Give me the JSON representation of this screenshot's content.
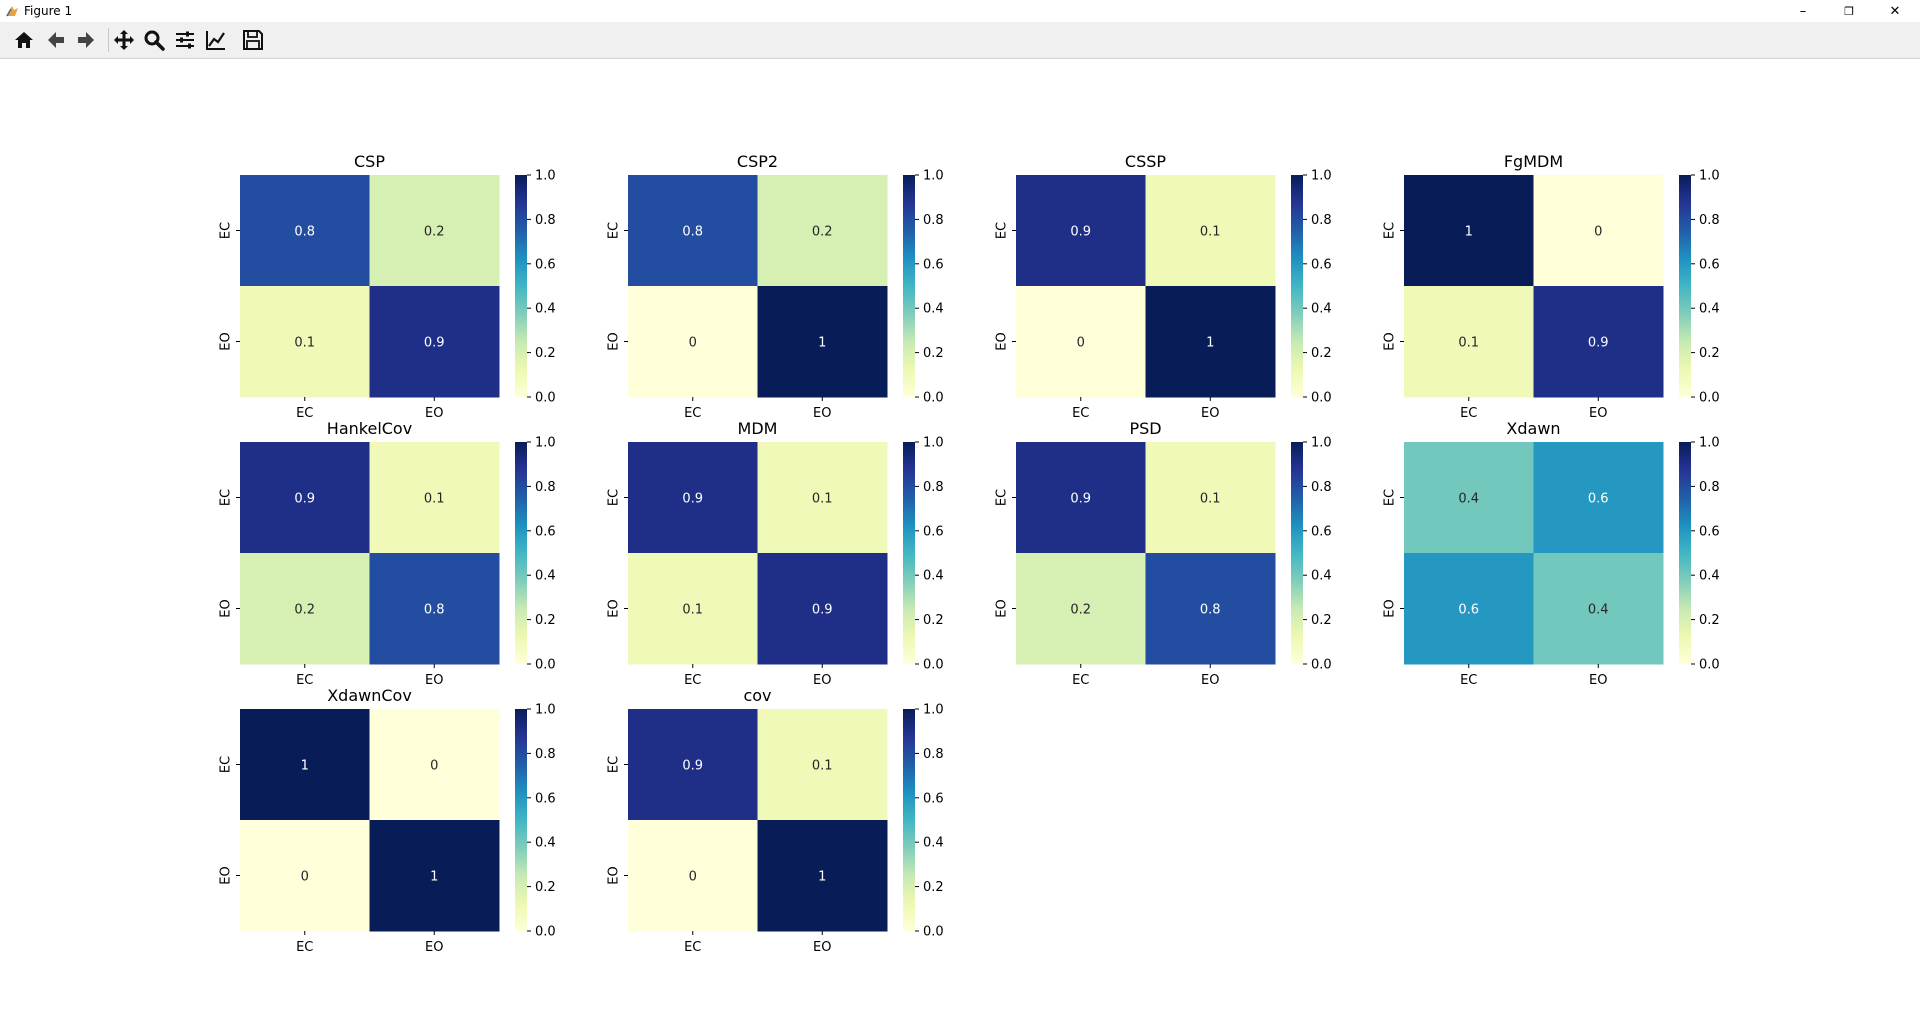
{
  "window": {
    "title": "Figure 1"
  },
  "window_controls": {
    "minimize": "–",
    "restore": "❐",
    "close": "✕"
  },
  "toolbar": {
    "buttons": [
      {
        "name": "home-icon"
      },
      {
        "name": "back-icon"
      },
      {
        "name": "forward-icon"
      },
      {
        "name": "pan-icon"
      },
      {
        "name": "zoom-icon"
      },
      {
        "name": "configure-subplots-icon"
      },
      {
        "name": "edit-axes-icon"
      },
      {
        "name": "save-icon"
      }
    ]
  },
  "colormap": {
    "name": "YlGnBu",
    "stops": [
      "#ffffd9",
      "#edf8b1",
      "#c7e9b4",
      "#7fcdbb",
      "#41b6c4",
      "#1d91c0",
      "#225ea8",
      "#253494",
      "#081d58"
    ]
  },
  "chart_data": [
    {
      "type": "heatmap",
      "title": "CSP",
      "x_labels": [
        "EC",
        "EO"
      ],
      "y_labels": [
        "EC",
        "EO"
      ],
      "values": [
        [
          0.8,
          0.2
        ],
        [
          0.1,
          0.9
        ]
      ],
      "annotations": [
        [
          "0.8",
          "0.2"
        ],
        [
          "0.1",
          "0.9"
        ]
      ],
      "colorbar_ticks": [
        "0.0",
        "0.2",
        "0.4",
        "0.6",
        "0.8",
        "1.0"
      ],
      "vmin": 0,
      "vmax": 1
    },
    {
      "type": "heatmap",
      "title": "CSP2",
      "x_labels": [
        "EC",
        "EO"
      ],
      "y_labels": [
        "EC",
        "EO"
      ],
      "values": [
        [
          0.8,
          0.2
        ],
        [
          0,
          1
        ]
      ],
      "annotations": [
        [
          "0.8",
          "0.2"
        ],
        [
          "0",
          "1"
        ]
      ],
      "colorbar_ticks": [
        "0.0",
        "0.2",
        "0.4",
        "0.6",
        "0.8",
        "1.0"
      ],
      "vmin": 0,
      "vmax": 1
    },
    {
      "type": "heatmap",
      "title": "CSSP",
      "x_labels": [
        "EC",
        "EO"
      ],
      "y_labels": [
        "EC",
        "EO"
      ],
      "values": [
        [
          0.9,
          0.1
        ],
        [
          0,
          1
        ]
      ],
      "annotations": [
        [
          "0.9",
          "0.1"
        ],
        [
          "0",
          "1"
        ]
      ],
      "colorbar_ticks": [
        "0.0",
        "0.2",
        "0.4",
        "0.6",
        "0.8",
        "1.0"
      ],
      "vmin": 0,
      "vmax": 1
    },
    {
      "type": "heatmap",
      "title": "FgMDM",
      "x_labels": [
        "EC",
        "EO"
      ],
      "y_labels": [
        "EC",
        "EO"
      ],
      "values": [
        [
          1,
          0
        ],
        [
          0.1,
          0.9
        ]
      ],
      "annotations": [
        [
          "1",
          "0"
        ],
        [
          "0.1",
          "0.9"
        ]
      ],
      "colorbar_ticks": [
        "0.0",
        "0.2",
        "0.4",
        "0.6",
        "0.8",
        "1.0"
      ],
      "vmin": 0,
      "vmax": 1
    },
    {
      "type": "heatmap",
      "title": "HankelCov",
      "x_labels": [
        "EC",
        "EO"
      ],
      "y_labels": [
        "EC",
        "EO"
      ],
      "values": [
        [
          0.9,
          0.1
        ],
        [
          0.2,
          0.8
        ]
      ],
      "annotations": [
        [
          "0.9",
          "0.1"
        ],
        [
          "0.2",
          "0.8"
        ]
      ],
      "colorbar_ticks": [
        "0.0",
        "0.2",
        "0.4",
        "0.6",
        "0.8",
        "1.0"
      ],
      "vmin": 0,
      "vmax": 1
    },
    {
      "type": "heatmap",
      "title": "MDM",
      "x_labels": [
        "EC",
        "EO"
      ],
      "y_labels": [
        "EC",
        "EO"
      ],
      "values": [
        [
          0.9,
          0.1
        ],
        [
          0.1,
          0.9
        ]
      ],
      "annotations": [
        [
          "0.9",
          "0.1"
        ],
        [
          "0.1",
          "0.9"
        ]
      ],
      "colorbar_ticks": [
        "0.0",
        "0.2",
        "0.4",
        "0.6",
        "0.8",
        "1.0"
      ],
      "vmin": 0,
      "vmax": 1
    },
    {
      "type": "heatmap",
      "title": "PSD",
      "x_labels": [
        "EC",
        "EO"
      ],
      "y_labels": [
        "EC",
        "EO"
      ],
      "values": [
        [
          0.9,
          0.1
        ],
        [
          0.2,
          0.8
        ]
      ],
      "annotations": [
        [
          "0.9",
          "0.1"
        ],
        [
          "0.2",
          "0.8"
        ]
      ],
      "colorbar_ticks": [
        "0.0",
        "0.2",
        "0.4",
        "0.6",
        "0.8",
        "1.0"
      ],
      "vmin": 0,
      "vmax": 1
    },
    {
      "type": "heatmap",
      "title": "Xdawn",
      "x_labels": [
        "EC",
        "EO"
      ],
      "y_labels": [
        "EC",
        "EO"
      ],
      "values": [
        [
          0.4,
          0.6
        ],
        [
          0.6,
          0.4
        ]
      ],
      "annotations": [
        [
          "0.4",
          "0.6"
        ],
        [
          "0.6",
          "0.4"
        ]
      ],
      "colorbar_ticks": [
        "0.0",
        "0.2",
        "0.4",
        "0.6",
        "0.8",
        "1.0"
      ],
      "vmin": 0,
      "vmax": 1
    },
    {
      "type": "heatmap",
      "title": "XdawnCov",
      "x_labels": [
        "EC",
        "EO"
      ],
      "y_labels": [
        "EC",
        "EO"
      ],
      "values": [
        [
          1,
          0
        ],
        [
          0,
          1
        ]
      ],
      "annotations": [
        [
          "1",
          "0"
        ],
        [
          "0",
          "1"
        ]
      ],
      "colorbar_ticks": [
        "0.0",
        "0.2",
        "0.4",
        "0.6",
        "0.8",
        "1.0"
      ],
      "vmin": 0,
      "vmax": 1
    },
    {
      "type": "heatmap",
      "title": "cov",
      "x_labels": [
        "EC",
        "EO"
      ],
      "y_labels": [
        "EC",
        "EO"
      ],
      "values": [
        [
          0.9,
          0.1
        ],
        [
          0,
          1
        ]
      ],
      "annotations": [
        [
          "0.9",
          "0.1"
        ],
        [
          "0",
          "1"
        ]
      ],
      "colorbar_ticks": [
        "0.0",
        "0.2",
        "0.4",
        "0.6",
        "0.8",
        "1.0"
      ],
      "vmin": 0,
      "vmax": 1
    }
  ]
}
